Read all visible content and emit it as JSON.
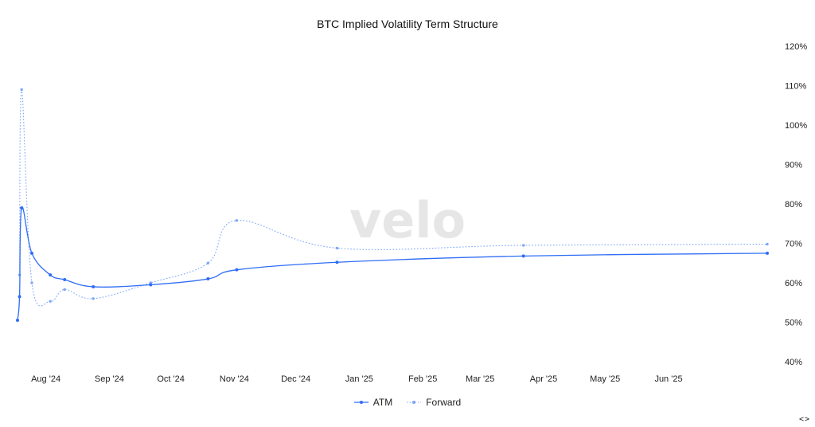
{
  "chart_data": {
    "type": "line",
    "title": "BTC Implied Volatility Term Structure",
    "watermark": "velo",
    "x_range": [
      "2024-07-24",
      "2025-07-25"
    ],
    "y_range": [
      40,
      120
    ],
    "y_ticks": [
      40,
      50,
      60,
      70,
      80,
      90,
      100,
      110,
      120
    ],
    "y_tick_labels": [
      "40%",
      "50%",
      "60%",
      "70%",
      "80%",
      "90%",
      "100%",
      "110%",
      "120%"
    ],
    "y_axis_position": "right",
    "x_ticks": [
      "2024-08-01",
      "2024-09-01",
      "2024-10-01",
      "2024-11-01",
      "2024-12-01",
      "2025-01-01",
      "2025-02-01",
      "2025-03-01",
      "2025-04-01",
      "2025-05-01",
      "2025-06-01"
    ],
    "x_tick_labels": [
      "Aug '24",
      "Sep '24",
      "Oct '24",
      "Nov '24",
      "Dec '24",
      "Jan '25",
      "Feb '25",
      "Mar '25",
      "Apr '25",
      "May '25",
      "Jun '25"
    ],
    "grid": false,
    "legend_position": "bottom-center",
    "series": [
      {
        "name": "ATM",
        "color": "#2f6df6",
        "style": "solid",
        "x": [
          "2024-07-24",
          "2024-07-25",
          "2024-07-26",
          "2024-07-31",
          "2024-08-09",
          "2024-08-16",
          "2024-08-30",
          "2024-09-27",
          "2024-10-25",
          "2024-11-08",
          "2024-12-27",
          "2025-03-28",
          "2025-07-25"
        ],
        "values": [
          50.5,
          56.5,
          79.0,
          67.5,
          62.0,
          60.8,
          59.0,
          59.5,
          61.0,
          63.3,
          65.2,
          66.8,
          67.5
        ]
      },
      {
        "name": "Forward",
        "color": "#7ea6f8",
        "style": "dotted",
        "x": [
          "2024-07-25",
          "2024-07-26",
          "2024-07-31",
          "2024-08-09",
          "2024-08-16",
          "2024-08-30",
          "2024-09-27",
          "2024-10-25",
          "2024-11-08",
          "2024-12-27",
          "2025-03-28",
          "2025-07-25"
        ],
        "values": [
          62.0,
          109.0,
          60.0,
          55.3,
          58.3,
          56.0,
          60.0,
          65.0,
          75.8,
          68.8,
          69.5,
          69.8
        ]
      }
    ]
  },
  "legend": {
    "items": [
      {
        "label": "ATM"
      },
      {
        "label": "Forward"
      }
    ]
  },
  "nav": {
    "arrows": "<>"
  }
}
